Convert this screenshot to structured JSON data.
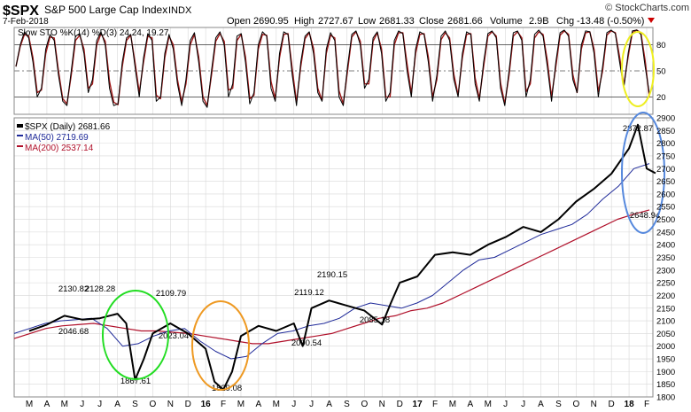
{
  "header": {
    "symbol": "$SPX",
    "name": "S&P 500 Large Cap Index",
    "exchange": "INDX",
    "date": "7-Feb-2018",
    "open_label": "Open",
    "open": "2690.95",
    "high_label": "High",
    "high": "2727.67",
    "low_label": "Low",
    "low": "2681.33",
    "close_label": "Close",
    "close": "2681.66",
    "volume_label": "Volume",
    "volume": "2.9B",
    "chg_label": "Chg",
    "chg": "-13.48 (-0.50%)",
    "watermark": "© StockCharts.com"
  },
  "colors": {
    "price": "#000000",
    "ma50": "#1f2a99",
    "ma200": "#b0102a",
    "stoch_k": "#000000",
    "stoch_d": "#a01818",
    "green_circle": "#22dd22",
    "orange_circle": "#ee9922",
    "yellow_circle": "#eeee22",
    "blue_circle": "#5588dd",
    "grid": "#d8d8d8",
    "down_arrow": "#cc0000"
  },
  "chart_data": [
    {
      "type": "line",
      "title": "Slow STO %K(14) %D(3) 24.24, 19.27",
      "legend": [
        "Slow STO %K(14) %D(3) 24.24, 19.27"
      ],
      "ylim": [
        0,
        100
      ],
      "y_ticks": [
        20,
        50,
        80
      ],
      "reference_lines": [
        20,
        50,
        80
      ],
      "grid": true,
      "series": [
        {
          "name": "%K(14)",
          "values": [
            55,
            80,
            95,
            88,
            60,
            20,
            30,
            75,
            92,
            85,
            45,
            15,
            10,
            50,
            90,
            93,
            70,
            25,
            40,
            85,
            95,
            80,
            30,
            10,
            12,
            60,
            88,
            92,
            55,
            20,
            65,
            93,
            85,
            15,
            20,
            70,
            92,
            75,
            35,
            10,
            40,
            85,
            94,
            60,
            15,
            8,
            50,
            88,
            95,
            80,
            20,
            35,
            90,
            93,
            60,
            12,
            25,
            80,
            95,
            90,
            30,
            15,
            70,
            95,
            92,
            45,
            10,
            60,
            90,
            95,
            70,
            25,
            15,
            75,
            94,
            85,
            20,
            10,
            55,
            92,
            96,
            80,
            30,
            40,
            88,
            95,
            70,
            15,
            25,
            85,
            96,
            93,
            50,
            20,
            75,
            95,
            92,
            60,
            15,
            45,
            90,
            96,
            85,
            40,
            20,
            70,
            95,
            92,
            35,
            15,
            60,
            93,
            96,
            88,
            30,
            10,
            50,
            94,
            96,
            85,
            20,
            40,
            92,
            97,
            90,
            55,
            15,
            60,
            94,
            97,
            90,
            40,
            25,
            80,
            96,
            95,
            70,
            20,
            55,
            94,
            97,
            93,
            60,
            30,
            70,
            96,
            97,
            92,
            55,
            24.24
          ]
        },
        {
          "name": "%D(3)",
          "values": [
            55,
            78,
            92,
            90,
            65,
            25,
            28,
            70,
            89,
            88,
            50,
            18,
            12,
            45,
            85,
            91,
            75,
            30,
            35,
            80,
            93,
            84,
            38,
            14,
            11,
            55,
            85,
            91,
            60,
            25,
            60,
            90,
            88,
            22,
            18,
            65,
            90,
            80,
            40,
            14,
            35,
            80,
            92,
            66,
            20,
            10,
            45,
            84,
            93,
            84,
            28,
            30,
            85,
            92,
            66,
            18,
            22,
            75,
            92,
            91,
            38,
            18,
            65,
            92,
            93,
            52,
            14,
            55,
            87,
            94,
            76,
            30,
            16,
            70,
            91,
            88,
            27,
            12,
            50,
            89,
            95,
            84,
            35,
            35,
            84,
            94,
            75,
            20,
            20,
            80,
            94,
            94,
            58,
            24,
            70,
            92,
            93,
            66,
            20,
            40,
            86,
            94,
            88,
            46,
            22,
            65,
            92,
            93,
            42,
            18,
            55,
            90,
            95,
            90,
            36,
            12,
            45,
            90,
            95,
            88,
            26,
            35,
            88,
            95,
            92,
            62,
            20,
            55,
            91,
            96,
            92,
            46,
            25,
            75,
            94,
            95,
            75,
            26,
            50,
            91,
            96,
            94,
            66,
            34,
            66,
            94,
            97,
            94,
            62,
            19.27
          ]
        }
      ]
    },
    {
      "type": "line",
      "title": "$SPX (Daily) 2681.66",
      "legend": [
        "$SPX (Daily) 2681.66",
        "MA(50) 2719.69",
        "MA(200) 2537.14"
      ],
      "x_ticks": [
        "M",
        "A",
        "M",
        "J",
        "J",
        "A",
        "S",
        "O",
        "N",
        "D",
        "16",
        "F",
        "M",
        "A",
        "M",
        "J",
        "J",
        "A",
        "S",
        "O",
        "N",
        "D",
        "17",
        "F",
        "M",
        "A",
        "M",
        "J",
        "J",
        "A",
        "S",
        "O",
        "N",
        "D",
        "18",
        "F"
      ],
      "ylim": [
        1800,
        2900
      ],
      "y_ticks": [
        1800,
        1850,
        1900,
        1950,
        2000,
        2050,
        2100,
        2150,
        2200,
        2250,
        2300,
        2350,
        2400,
        2450,
        2500,
        2550,
        2600,
        2650,
        2700,
        2750,
        2800,
        2850,
        2900
      ],
      "grid": true,
      "series": [
        {
          "name": "$SPX",
          "months": [
            "2015-03",
            "2015-04",
            "2015-05",
            "2015-06",
            "2015-07",
            "2015-08",
            "2015-08",
            "2015-09",
            "2015-09",
            "2015-10",
            "2015-11",
            "2015-12",
            "2016-01",
            "2016-01",
            "2016-02",
            "2016-02",
            "2016-03",
            "2016-04",
            "2016-05",
            "2016-06",
            "2016-06",
            "2016-07",
            "2016-08",
            "2016-09",
            "2016-10",
            "2016-11",
            "2016-11",
            "2016-12",
            "2017-01",
            "2017-02",
            "2017-03",
            "2017-04",
            "2017-05",
            "2017-06",
            "2017-07",
            "2017-08",
            "2017-09",
            "2017-10",
            "2017-11",
            "2017-12",
            "2018-01",
            "2018-01",
            "2018-02",
            "2018-02"
          ],
          "values": [
            2060,
            2085,
            2120,
            2105,
            2110,
            2128,
            2090,
            1867.61,
            1950,
            2050,
            2090,
            2050,
            1990,
            1860,
            1829.08,
            1900,
            2040,
            2080,
            2060,
            2090,
            2000.54,
            2150,
            2180,
            2160,
            2140,
            2085.18,
            2170,
            2250,
            2275,
            2360,
            2370,
            2360,
            2400,
            2430,
            2470,
            2450,
            2500,
            2570,
            2620,
            2680,
            2780,
            2872.87,
            2700,
            2681.66
          ]
        },
        {
          "name": "MA(50)",
          "values": [
            2050,
            2070,
            2090,
            2100,
            2105,
            2110,
            2070,
            2000,
            2010,
            2040,
            2060,
            2070,
            2020,
            1980,
            1950,
            1960,
            2010,
            2050,
            2060,
            2080,
            2090,
            2110,
            2150,
            2170,
            2160,
            2150,
            2170,
            2200,
            2250,
            2300,
            2340,
            2350,
            2380,
            2410,
            2440,
            2460,
            2480,
            2520,
            2580,
            2630,
            2700,
            2719.69
          ]
        },
        {
          "name": "MA(200)",
          "values": [
            2030,
            2050,
            2070,
            2080,
            2085,
            2090,
            2080,
            2070,
            2060,
            2060,
            2055,
            2050,
            2040,
            2030,
            2020,
            2010,
            2010,
            2020,
            2030,
            2040,
            2050,
            2070,
            2090,
            2110,
            2120,
            2140,
            2150,
            2170,
            2200,
            2230,
            2260,
            2290,
            2320,
            2350,
            2380,
            2410,
            2440,
            2470,
            2500,
            2520,
            2537.14
          ]
        }
      ],
      "annotations": [
        "2130.82",
        "2128.28",
        "2109.79",
        "2046.68",
        "2023.04",
        "1867.61",
        "1829.08",
        "2119.12",
        "2190.15",
        "2000.54",
        "2085.18",
        "2872.87",
        "2648.94"
      ]
    }
  ]
}
